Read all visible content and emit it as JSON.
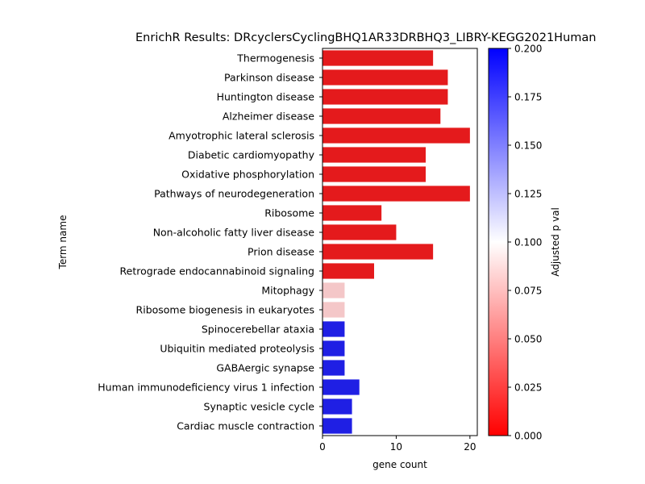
{
  "chart_data": {
    "type": "bar",
    "orientation": "horizontal",
    "title": "EnrichR Results: DRcyclersCyclingBHQ1AR33DRBHQ3_LIBRY-KEGG2021Human",
    "xlabel": "gene count",
    "ylabel": "Term name",
    "xlim": [
      0,
      21
    ],
    "xticks": [
      "0",
      "10",
      "20"
    ],
    "grid": false,
    "categories": [
      "Thermogenesis",
      "Parkinson disease",
      "Huntington disease",
      "Alzheimer disease",
      "Amyotrophic lateral sclerosis",
      "Diabetic cardiomyopathy",
      "Oxidative phosphorylation",
      "Pathways of neurodegeneration",
      "Ribosome",
      "Non-alcoholic fatty liver disease",
      "Prion disease",
      "Retrograde endocannabinoid signaling",
      "Mitophagy",
      "Ribosome biogenesis in eukaryotes",
      "Spinocerebellar ataxia",
      "Ubiquitin mediated proteolysis",
      "GABAergic synapse",
      "Human immunodeficiency virus 1 infection",
      "Synaptic vesicle cycle",
      "Cardiac muscle contraction"
    ],
    "values": [
      15,
      17,
      17,
      16,
      20,
      14,
      14,
      20,
      8,
      10,
      15,
      7,
      3,
      3,
      3,
      3,
      3,
      5,
      4,
      4
    ],
    "bar_colors": [
      "#e41a1c",
      "#e41a1c",
      "#e41a1c",
      "#e41a1c",
      "#e41a1c",
      "#e41a1c",
      "#e41a1c",
      "#e41a1c",
      "#e41a1c",
      "#e41a1c",
      "#e41a1c",
      "#e41a1c",
      "#f4c7c8",
      "#f4c7c8",
      "#1f1fe4",
      "#1f1fe4",
      "#1f1fe4",
      "#1f1fe4",
      "#1f1fe4",
      "#1f1fe4"
    ],
    "colorbar": {
      "label": "Adjusted p val",
      "range": [
        0,
        0.2
      ],
      "ticks": [
        "0.000",
        "0.025",
        "0.050",
        "0.075",
        "0.100",
        "0.125",
        "0.150",
        "0.175",
        "0.200"
      ],
      "colormap": [
        "#ff0000",
        "#ffffff",
        "#0000ff"
      ]
    }
  }
}
